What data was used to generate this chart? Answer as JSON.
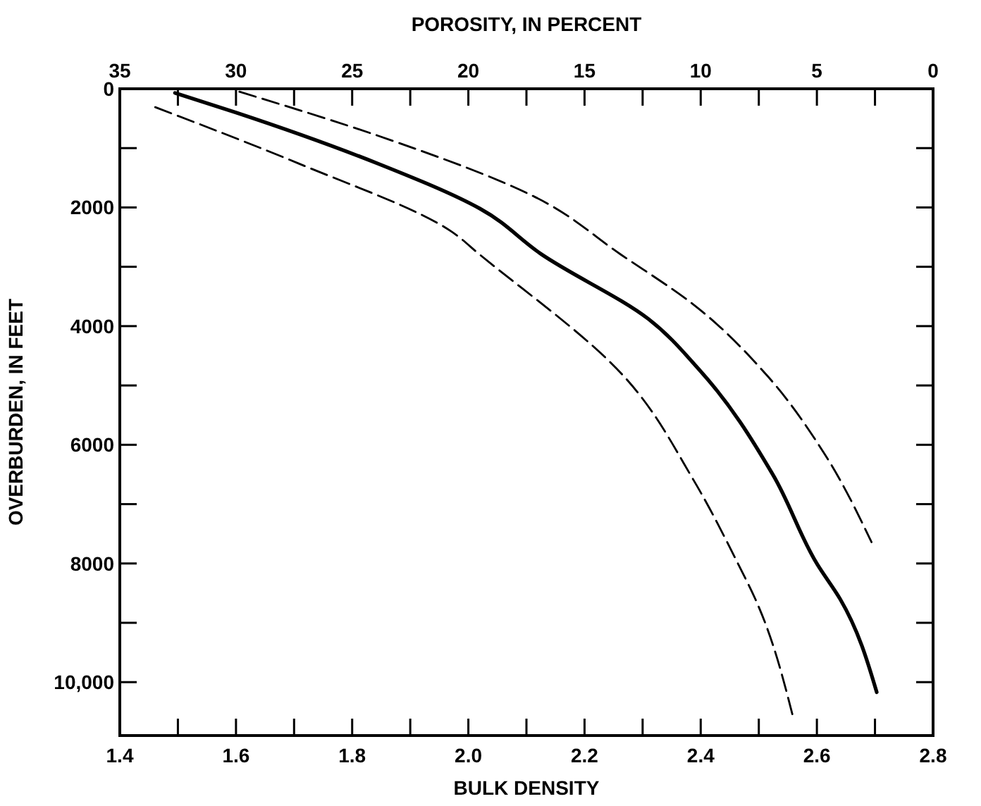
{
  "chart_data": {
    "type": "line",
    "xlabel": "BULK DENSITY",
    "ylabel": "OVERBURDEN, IN FEET",
    "x2label": "POROSITY, IN PERCENT",
    "xlim": [
      1.4,
      2.8
    ],
    "ylim": [
      10900,
      0
    ],
    "x2lim": [
      35,
      0
    ],
    "xticks": [
      {
        "value": 1.4,
        "label": "1.4"
      },
      {
        "value": 1.5,
        "label": null
      },
      {
        "value": 1.6,
        "label": "1.6"
      },
      {
        "value": 1.7,
        "label": null
      },
      {
        "value": 1.8,
        "label": "1.8"
      },
      {
        "value": 1.9,
        "label": null
      },
      {
        "value": 2,
        "label": "2.0"
      },
      {
        "value": 2.1,
        "label": null
      },
      {
        "value": 2.2,
        "label": "2.2"
      },
      {
        "value": 2.3,
        "label": null
      },
      {
        "value": 2.4,
        "label": "2.4"
      },
      {
        "value": 2.5,
        "label": null
      },
      {
        "value": 2.6,
        "label": "2.6"
      },
      {
        "value": 2.7,
        "label": null
      },
      {
        "value": 2.8,
        "label": "2.8"
      }
    ],
    "yticks": [
      0,
      {
        "value": 1000,
        "label": null
      },
      2000,
      {
        "value": 3000,
        "label": null
      },
      4000,
      {
        "value": 5000,
        "label": null
      },
      6000,
      {
        "value": 7000,
        "label": null
      },
      8000,
      {
        "value": 9000,
        "label": null
      },
      {
        "value": 10000,
        "label": "10,000"
      }
    ],
    "x2ticks": [
      35,
      {
        "value": 32.5,
        "label": null
      },
      30,
      {
        "value": 27.5,
        "label": null
      },
      25,
      {
        "value": 22.5,
        "label": null
      },
      20,
      {
        "value": 17.5,
        "label": null
      },
      15,
      {
        "value": 12.5,
        "label": null
      },
      10,
      {
        "value": 7.5,
        "label": null
      },
      5,
      {
        "value": 2.5,
        "label": null
      },
      0
    ],
    "grid": false,
    "series": [
      {
        "color": "#000000",
        "line_style": "solid",
        "x": [
          1.495,
          1.6,
          1.844,
          2.02,
          2.126,
          2.31,
          2.398,
          2.524,
          2.601,
          2.64,
          2.703
        ],
        "values": [
          70,
          400,
          1260,
          2020,
          2790,
          3880,
          4740,
          6500,
          8020,
          8600,
          10170
        ]
      },
      {
        "color": "#000000",
        "line_style": "dashed",
        "x": [
          1.606,
          1.844,
          2.116,
          2.262,
          2.388,
          2.514,
          2.611,
          2.694
        ],
        "values": [
          50,
          790,
          1830,
          2790,
          3640,
          4830,
          6120,
          7640
        ]
      },
      {
        "color": "#000000",
        "line_style": "dashed",
        "x": [
          1.461,
          1.708,
          1.97,
          2.019,
          2.271,
          2.388,
          2.465,
          2.494,
          2.558
        ],
        "values": [
          310,
          1260,
          2400,
          2790,
          4880,
          6600,
          8020,
          8600,
          10550
        ]
      }
    ]
  }
}
